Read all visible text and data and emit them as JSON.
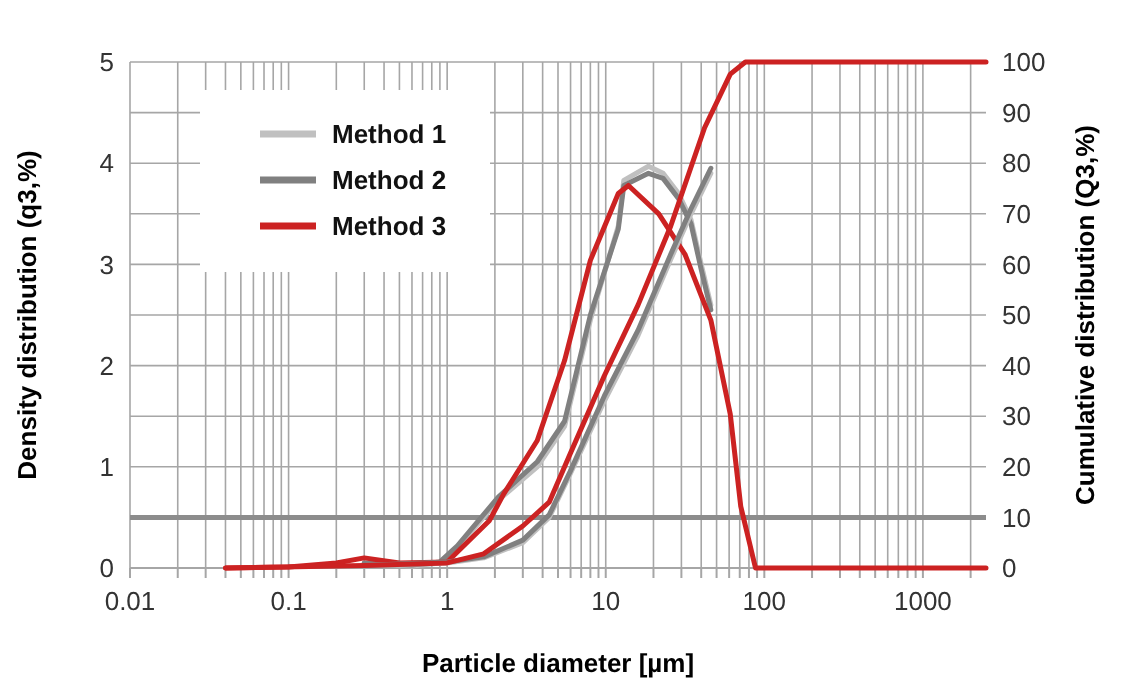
{
  "chart_data": {
    "type": "line",
    "xlabel": "Particle diameter [µm]",
    "ylabel": "Density distribution (q3,%)",
    "y2label": "Cumulative distribution (Q3,%)",
    "log": "x",
    "xlim": [
      0.01,
      2500
    ],
    "xticks": [
      0.01,
      {
        "value": 0.02,
        "label": null
      },
      {
        "value": 0.03,
        "label": null
      },
      {
        "value": 0.04,
        "label": null
      },
      {
        "value": 0.05,
        "label": null
      },
      {
        "value": 0.06,
        "label": null
      },
      {
        "value": 0.07,
        "label": null
      },
      {
        "value": 0.08,
        "label": null
      },
      {
        "value": 0.09,
        "label": null
      },
      0.1,
      {
        "value": 0.2,
        "label": null
      },
      {
        "value": 0.3,
        "label": null
      },
      {
        "value": 0.4,
        "label": null
      },
      {
        "value": 0.5,
        "label": null
      },
      {
        "value": 0.6,
        "label": null
      },
      {
        "value": 0.7,
        "label": null
      },
      {
        "value": 0.8,
        "label": null
      },
      {
        "value": 0.9,
        "label": null
      },
      1,
      {
        "value": 2,
        "label": null
      },
      {
        "value": 3,
        "label": null
      },
      {
        "value": 4,
        "label": null
      },
      {
        "value": 5,
        "label": null
      },
      {
        "value": 6,
        "label": null
      },
      {
        "value": 7,
        "label": null
      },
      {
        "value": 8,
        "label": null
      },
      {
        "value": 9,
        "label": null
      },
      10,
      {
        "value": 20,
        "label": null
      },
      {
        "value": 30,
        "label": null
      },
      {
        "value": 40,
        "label": null
      },
      {
        "value": 50,
        "label": null
      },
      {
        "value": 60,
        "label": null
      },
      {
        "value": 70,
        "label": null
      },
      {
        "value": 80,
        "label": null
      },
      {
        "value": 90,
        "label": null
      },
      100,
      {
        "value": 200,
        "label": null
      },
      {
        "value": 300,
        "label": null
      },
      {
        "value": 400,
        "label": null
      },
      {
        "value": 500,
        "label": null
      },
      {
        "value": 600,
        "label": null
      },
      {
        "value": 700,
        "label": null
      },
      {
        "value": 800,
        "label": null
      },
      {
        "value": 900,
        "label": null
      },
      1000,
      {
        "value": 2000,
        "label": null
      }
    ],
    "ylim": [
      0,
      5
    ],
    "yticks": [
      0,
      {
        "value": 0.5,
        "label": null
      },
      1,
      {
        "value": 1.5,
        "label": null
      },
      2,
      {
        "value": 2.5,
        "label": null
      },
      3,
      {
        "value": 3.5,
        "label": null
      },
      4,
      {
        "value": 4.5,
        "label": null
      },
      5
    ],
    "y2lim": [
      0,
      100
    ],
    "y2ticks": [
      0,
      10,
      20,
      30,
      40,
      50,
      60,
      70,
      80,
      90,
      100
    ],
    "grid": true,
    "legend": "top left",
    "line_style": "solid",
    "ref_lines": [
      {
        "axis": "y",
        "value": 0.5,
        "color": "#8c8c8c"
      }
    ],
    "series": [
      {
        "name": "Method 1",
        "color": "#c0c0c0",
        "x": [
          0.3,
          0.6,
          0.9,
          1.16,
          2.1,
          3.7,
          5.5,
          8,
          12,
          13,
          18.6,
          23,
          28.8,
          34.5,
          40,
          46
        ],
        "values": [
          0.05,
          0.02,
          0.05,
          0.2,
          0.67,
          1,
          1.4,
          2.45,
          3.38,
          3.83,
          3.97,
          3.9,
          3.7,
          3.44,
          3.0,
          2.6
        ]
      },
      {
        "name": "Method 2",
        "color": "#808080",
        "x": [
          0.3,
          0.6,
          0.9,
          1.16,
          2.1,
          3.7,
          5.5,
          8,
          12,
          13,
          18.6,
          23,
          28.8,
          34.5,
          40,
          46
        ],
        "values": [
          0.05,
          0.03,
          0.06,
          0.22,
          0.7,
          1.05,
          1.45,
          2.5,
          3.35,
          3.78,
          3.9,
          3.85,
          3.65,
          3.4,
          2.95,
          2.55
        ]
      },
      {
        "name": "Method 3",
        "color": "#cc2222",
        "x": [
          0.04,
          0.1,
          0.2,
          0.3,
          0.5,
          1,
          1.85,
          2.27,
          3.7,
          5.5,
          8,
          12,
          13.9,
          21.6,
          31.6,
          46,
          61,
          71,
          88,
          2500
        ],
        "values": [
          0,
          0.01,
          0.05,
          0.1,
          0.05,
          0.06,
          0.47,
          0.73,
          1.26,
          2.05,
          3.04,
          3.7,
          3.78,
          3.5,
          3.1,
          2.45,
          1.52,
          0.61,
          0,
          0
        ]
      },
      {
        "axis": "y2",
        "color": "#c0c0c0",
        "x": [
          0.3,
          1,
          1.7,
          3,
          4.4,
          5.95,
          9.8,
          16,
          25.7,
          34.5,
          46
        ],
        "values": [
          0.5,
          1,
          2,
          5,
          10,
          18.5,
          33,
          46,
          61,
          70,
          78
        ]
      },
      {
        "axis": "y2",
        "color": "#808080",
        "x": [
          0.3,
          1,
          1.7,
          3,
          4.4,
          5.95,
          9.8,
          16,
          25.7,
          34.5,
          46
        ],
        "values": [
          0.5,
          1.2,
          2.2,
          5.5,
          10.5,
          19,
          34,
          47,
          62,
          71,
          79
        ]
      },
      {
        "axis": "y2",
        "color": "#cc2222",
        "x": [
          0.04,
          0.3,
          1,
          1.7,
          3,
          4.4,
          5.95,
          9.8,
          16,
          25.7,
          42,
          61,
          76,
          2500
        ],
        "values": [
          0,
          0.5,
          1,
          2.8,
          8.3,
          13,
          22.5,
          38,
          52,
          67.6,
          87,
          97.6,
          100,
          100
        ]
      }
    ]
  }
}
